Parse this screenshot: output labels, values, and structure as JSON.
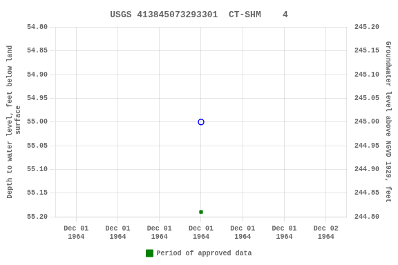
{
  "chart_data": {
    "type": "scatter",
    "title": "USGS 413845073293301  CT-SHM    4",
    "y_label": "Depth to water level, feet below land\n surface",
    "y2_label": "Groundwater level above NGVD 1929, feet",
    "categories": [
      "Dec 01\n1964",
      "Dec 01\n1964",
      "Dec 01\n1964",
      "Dec 01\n1964",
      "Dec 01\n1964",
      "Dec 01\n1964",
      "Dec 02\n1964"
    ],
    "series": [
      {
        "color": "blue",
        "marker": "circle",
        "values": [
          null,
          null,
          null,
          55.0,
          null,
          null,
          null
        ]
      },
      {
        "name": "Period of approved data",
        "color": "#008000",
        "marker": "square",
        "values": [
          null,
          null,
          null,
          55.19,
          null,
          null,
          null
        ]
      }
    ],
    "ylim": [
      55.2,
      54.8
    ],
    "yticks": [
      {
        "value": 54.8,
        "label": "54.80"
      },
      {
        "value": 54.85,
        "label": "54.85"
      },
      {
        "value": 54.9,
        "label": "54.90"
      },
      {
        "value": 54.95,
        "label": "54.95"
      },
      {
        "value": 55.0,
        "label": "55.00"
      },
      {
        "value": 55.05,
        "label": "55.05"
      },
      {
        "value": 55.1,
        "label": "55.10"
      },
      {
        "value": 55.15,
        "label": "55.15"
      },
      {
        "value": 55.2,
        "label": "55.20"
      }
    ],
    "y2lim": [
      244.8,
      245.2
    ],
    "y2ticks": [
      {
        "value": 245.2,
        "label": "245.20"
      },
      {
        "value": 245.15,
        "label": "245.15"
      },
      {
        "value": 245.1,
        "label": "245.10"
      },
      {
        "value": 245.05,
        "label": "245.05"
      },
      {
        "value": 245.0,
        "label": "245.00"
      },
      {
        "value": 244.95,
        "label": "244.95"
      },
      {
        "value": 244.9,
        "label": "244.90"
      },
      {
        "value": 244.85,
        "label": "244.85"
      },
      {
        "value": 244.8,
        "label": "244.80"
      }
    ],
    "grid": true,
    "legend": "bottom"
  }
}
